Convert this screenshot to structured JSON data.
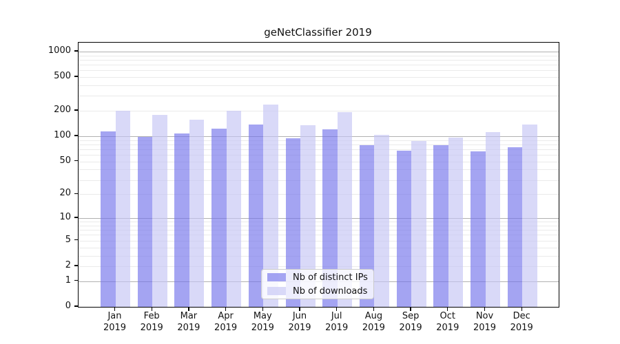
{
  "chart_data": {
    "type": "bar",
    "title": "geNetClassifier 2019",
    "categories": [
      "Jan",
      "Feb",
      "Mar",
      "Apr",
      "May",
      "Jun",
      "Jul",
      "Aug",
      "Sep",
      "Oct",
      "Nov",
      "Dec"
    ],
    "year": "2019",
    "series": [
      {
        "name": "Nb of distinct IPs",
        "color": "rgba(115,115,235,0.65)",
        "values": [
          115,
          98,
          108,
          122,
          138,
          95,
          120,
          78,
          67,
          78,
          66,
          74
        ]
      },
      {
        "name": "Nb of downloads",
        "color": "rgba(197,197,245,0.65)",
        "values": [
          199,
          178,
          158,
          202,
          236,
          135,
          193,
          104,
          87,
          97,
          112,
          137
        ]
      }
    ],
    "y_scale": "log(1+x)",
    "y_ticks": [
      0,
      1,
      2,
      5,
      10,
      20,
      50,
      100,
      200,
      500,
      1000
    ],
    "ylim": [
      0,
      1250
    ],
    "grid": "horizontal log gridlines, major at powers of 10",
    "legend_position": "lower center",
    "grid_colors": {
      "minor": "#eaeaea",
      "major": "#b0b0b0"
    }
  }
}
